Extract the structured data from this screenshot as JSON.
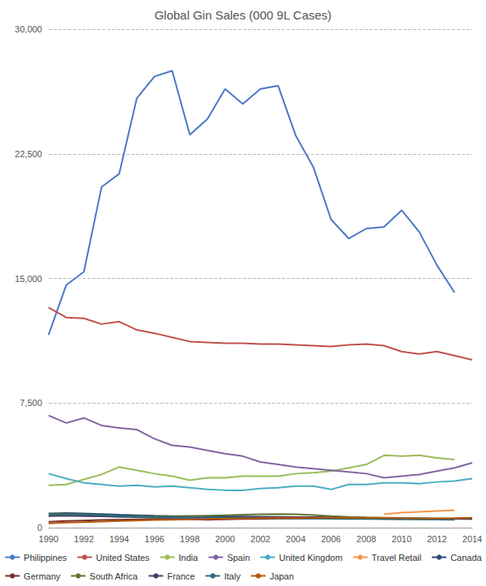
{
  "chart_data": {
    "type": "line",
    "title": "Global Gin Sales (000 9L Cases)",
    "categories": [
      "1990",
      null,
      "1992",
      null,
      "1994",
      null,
      "1996",
      null,
      "1998",
      null,
      "2000",
      null,
      "2002",
      null,
      "2004",
      null,
      "2006",
      null,
      "2008",
      null,
      "2010",
      null,
      "2012",
      null,
      "2014"
    ],
    "ylim": [
      0,
      30000
    ],
    "yticks": [
      0,
      {
        "value": 7500,
        "label": "7,500"
      },
      {
        "value": 15000,
        "label": "15,000"
      },
      {
        "value": 22500,
        "label": "22,500"
      },
      {
        "value": 30000,
        "label": "30,000"
      }
    ],
    "grid": true,
    "legend": "bottom",
    "series": [
      {
        "name": "Philippines",
        "color": "#4a78c6",
        "values": [
          11600,
          14600,
          15400,
          20500,
          21300,
          25850,
          27150,
          27500,
          23650,
          24600,
          26400,
          25500,
          26400,
          26600,
          23600,
          21700,
          18550,
          17400,
          18000,
          18100,
          19100,
          17800,
          15800,
          14150,
          null
        ]
      },
      {
        "name": "United States",
        "color": "#c0504d",
        "values": [
          13250,
          12650,
          12600,
          12250,
          12400,
          11900,
          11700,
          11450,
          11200,
          11150,
          11100,
          11100,
          11050,
          11050,
          11000,
          10950,
          10900,
          11000,
          11050,
          10950,
          10600,
          10450,
          10600,
          10350,
          10100
        ]
      },
      {
        "name": "India",
        "color": "#9bbb59",
        "values": [
          2550,
          2600,
          2900,
          3200,
          3650,
          3450,
          3250,
          3100,
          2850,
          3000,
          3000,
          3100,
          3100,
          3100,
          3250,
          3300,
          3400,
          3600,
          3800,
          4350,
          4300,
          4350,
          4200,
          4100,
          null
        ]
      },
      {
        "name": "Spain",
        "color": "#8064a2",
        "values": [
          6750,
          6300,
          6600,
          6150,
          6000,
          5900,
          5350,
          4950,
          4850,
          4650,
          4450,
          4300,
          3950,
          3800,
          3650,
          3550,
          3450,
          3350,
          3250,
          3000,
          3100,
          3200,
          3400,
          3600,
          3900
        ]
      },
      {
        "name": "United Kingdom",
        "color": "#4bacc6",
        "values": [
          3250,
          2950,
          2700,
          2600,
          2500,
          2550,
          2450,
          2500,
          2400,
          2300,
          2250,
          2250,
          2350,
          2400,
          2500,
          2500,
          2300,
          2600,
          2600,
          2700,
          2700,
          2650,
          2750,
          2800,
          2950
        ]
      },
      {
        "name": "Travel Retail",
        "color": "#f79646",
        "values": [
          null,
          null,
          null,
          null,
          null,
          null,
          null,
          null,
          null,
          null,
          null,
          null,
          null,
          null,
          null,
          null,
          null,
          null,
          null,
          800,
          900,
          950,
          1000,
          1050,
          null
        ]
      },
      {
        "name": "Canada",
        "color": "#2c4d75",
        "values": [
          850,
          880,
          850,
          820,
          780,
          750,
          720,
          700,
          690,
          680,
          680,
          670,
          660,
          650,
          640,
          630,
          620,
          600,
          580,
          570,
          560,
          560,
          550,
          540,
          530
        ]
      },
      {
        "name": "Germany",
        "color": "#772c2a",
        "values": [
          350,
          400,
          430,
          460,
          480,
          500,
          520,
          520,
          500,
          480,
          500,
          520,
          530,
          550,
          550,
          560,
          570,
          560,
          550,
          540,
          540,
          530,
          540,
          560,
          580
        ]
      },
      {
        "name": "South Africa",
        "color": "#5f7530",
        "values": [
          800,
          820,
          800,
          750,
          700,
          680,
          670,
          680,
          700,
          720,
          750,
          780,
          800,
          820,
          800,
          760,
          700,
          650,
          620,
          600,
          580,
          560,
          550,
          540,
          530
        ]
      },
      {
        "name": "France",
        "color": "#4d3b62",
        "values": [
          700,
          720,
          700,
          680,
          650,
          630,
          620,
          610,
          600,
          590,
          600,
          610,
          620,
          630,
          640,
          620,
          600,
          580,
          560,
          550,
          540,
          530,
          520,
          520,
          550
        ]
      },
      {
        "name": "Italy",
        "color": "#276a7c",
        "values": [
          750,
          800,
          780,
          740,
          700,
          660,
          640,
          620,
          610,
          600,
          590,
          580,
          570,
          560,
          560,
          550,
          540,
          530,
          520,
          510,
          500,
          500,
          490,
          480,
          null
        ]
      },
      {
        "name": "Japan",
        "color": "#b65708",
        "values": [
          250,
          300,
          330,
          360,
          400,
          430,
          460,
          480,
          500,
          520,
          540,
          560,
          570,
          580,
          590,
          600,
          600,
          590,
          580,
          580,
          570,
          560,
          550,
          560,
          600
        ]
      }
    ]
  }
}
